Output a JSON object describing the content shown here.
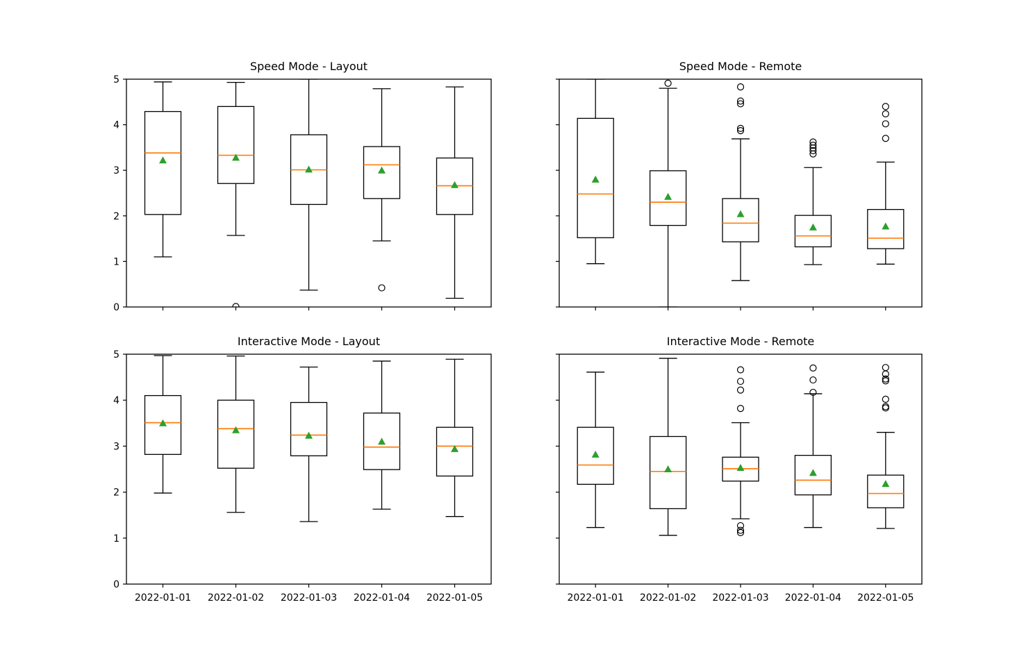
{
  "figure": {
    "background": "#ffffff",
    "colors": {
      "box_edge": "#000000",
      "median": "#ff7f0e",
      "mean_marker": "#2ca02c",
      "outlier_edge": "#000000",
      "text": "#000000"
    }
  },
  "chart_data": [
    {
      "type": "box",
      "title": "Speed Mode - Layout",
      "position": "top-left",
      "categories": [
        "2022-01-01",
        "2022-01-02",
        "2022-01-03",
        "2022-01-04",
        "2022-01-05"
      ],
      "ylim": [
        0,
        5
      ],
      "yticks": [
        0,
        1,
        2,
        3,
        4,
        5
      ],
      "show_y_tick_labels": true,
      "show_x_tick_labels": false,
      "grid": false,
      "legend": "none",
      "boxes": [
        {
          "category": "2022-01-01",
          "whislo": 1.1,
          "q1": 2.03,
          "med": 3.38,
          "q3": 4.29,
          "whishi": 4.94,
          "mean": 3.22,
          "fliers": []
        },
        {
          "category": "2022-01-02",
          "whislo": 1.57,
          "q1": 2.71,
          "med": 3.33,
          "q3": 4.4,
          "whishi": 4.93,
          "mean": 3.28,
          "fliers": [
            0.01
          ]
        },
        {
          "category": "2022-01-03",
          "whislo": 0.37,
          "q1": 2.25,
          "med": 3.01,
          "q3": 3.78,
          "whishi": 5.0,
          "mean": 3.02,
          "fliers": []
        },
        {
          "category": "2022-01-04",
          "whislo": 1.45,
          "q1": 2.38,
          "med": 3.12,
          "q3": 3.52,
          "whishi": 4.79,
          "mean": 3.0,
          "fliers": [
            0.42
          ]
        },
        {
          "category": "2022-01-05",
          "whislo": 0.19,
          "q1": 2.03,
          "med": 2.66,
          "q3": 3.27,
          "whishi": 4.83,
          "mean": 2.68,
          "fliers": []
        }
      ]
    },
    {
      "type": "box",
      "title": "Speed Mode - Remote",
      "position": "top-right",
      "categories": [
        "2022-01-01",
        "2022-01-02",
        "2022-01-03",
        "2022-01-04",
        "2022-01-05"
      ],
      "ylim": [
        0,
        5
      ],
      "yticks": [
        0,
        1,
        2,
        3,
        4,
        5
      ],
      "show_y_tick_labels": false,
      "show_x_tick_labels": false,
      "grid": false,
      "legend": "none",
      "boxes": [
        {
          "category": "2022-01-01",
          "whislo": 0.95,
          "q1": 1.52,
          "med": 2.48,
          "q3": 4.14,
          "whishi": 5.0,
          "mean": 2.8,
          "fliers": []
        },
        {
          "category": "2022-01-02",
          "whislo": 0.0,
          "q1": 1.79,
          "med": 2.3,
          "q3": 2.99,
          "whishi": 4.8,
          "mean": 2.42,
          "fliers": [
            4.91
          ]
        },
        {
          "category": "2022-01-03",
          "whislo": 0.58,
          "q1": 1.43,
          "med": 1.84,
          "q3": 2.38,
          "whishi": 3.69,
          "mean": 2.04,
          "fliers": [
            4.83,
            4.52,
            4.46,
            3.92,
            3.87
          ]
        },
        {
          "category": "2022-01-04",
          "whislo": 0.93,
          "q1": 1.32,
          "med": 1.56,
          "q3": 2.01,
          "whishi": 3.06,
          "mean": 1.75,
          "fliers": [
            3.62,
            3.55,
            3.49,
            3.43,
            3.36
          ]
        },
        {
          "category": "2022-01-05",
          "whislo": 0.94,
          "q1": 1.28,
          "med": 1.51,
          "q3": 2.14,
          "whishi": 3.18,
          "mean": 1.77,
          "fliers": [
            4.4,
            4.24,
            4.02,
            3.7
          ]
        }
      ]
    },
    {
      "type": "box",
      "title": "Interactive Mode - Layout",
      "position": "bottom-left",
      "categories": [
        "2022-01-01",
        "2022-01-02",
        "2022-01-03",
        "2022-01-04",
        "2022-01-05"
      ],
      "ylim": [
        0,
        5
      ],
      "yticks": [
        0,
        1,
        2,
        3,
        4,
        5
      ],
      "show_y_tick_labels": true,
      "show_x_tick_labels": true,
      "grid": false,
      "legend": "none",
      "boxes": [
        {
          "category": "2022-01-01",
          "whislo": 1.98,
          "q1": 2.82,
          "med": 3.51,
          "q3": 4.1,
          "whishi": 4.97,
          "mean": 3.5,
          "fliers": []
        },
        {
          "category": "2022-01-02",
          "whislo": 1.56,
          "q1": 2.52,
          "med": 3.38,
          "q3": 4.0,
          "whishi": 4.96,
          "mean": 3.35,
          "fliers": []
        },
        {
          "category": "2022-01-03",
          "whislo": 1.36,
          "q1": 2.79,
          "med": 3.24,
          "q3": 3.95,
          "whishi": 4.72,
          "mean": 3.23,
          "fliers": []
        },
        {
          "category": "2022-01-04",
          "whislo": 1.63,
          "q1": 2.49,
          "med": 2.98,
          "q3": 3.72,
          "whishi": 4.85,
          "mean": 3.1,
          "fliers": []
        },
        {
          "category": "2022-01-05",
          "whislo": 1.47,
          "q1": 2.35,
          "med": 3.0,
          "q3": 3.41,
          "whishi": 4.89,
          "mean": 2.94,
          "fliers": []
        }
      ]
    },
    {
      "type": "box",
      "title": "Interactive Mode - Remote",
      "position": "bottom-right",
      "categories": [
        "2022-01-01",
        "2022-01-02",
        "2022-01-03",
        "2022-01-04",
        "2022-01-05"
      ],
      "ylim": [
        0,
        5
      ],
      "yticks": [
        0,
        1,
        2,
        3,
        4,
        5
      ],
      "show_y_tick_labels": false,
      "show_x_tick_labels": true,
      "grid": false,
      "legend": "none",
      "boxes": [
        {
          "category": "2022-01-01",
          "whislo": 1.23,
          "q1": 2.17,
          "med": 2.59,
          "q3": 3.41,
          "whishi": 4.61,
          "mean": 2.82,
          "fliers": []
        },
        {
          "category": "2022-01-02",
          "whislo": 1.06,
          "q1": 1.64,
          "med": 2.45,
          "q3": 3.21,
          "whishi": 4.91,
          "mean": 2.5,
          "fliers": []
        },
        {
          "category": "2022-01-03",
          "whislo": 1.42,
          "q1": 2.24,
          "med": 2.51,
          "q3": 2.76,
          "whishi": 3.51,
          "mean": 2.53,
          "fliers": [
            4.66,
            4.41,
            4.22,
            3.82,
            1.27,
            1.17,
            1.12
          ]
        },
        {
          "category": "2022-01-04",
          "whislo": 1.23,
          "q1": 1.94,
          "med": 2.26,
          "q3": 2.8,
          "whishi": 4.14,
          "mean": 2.42,
          "fliers": [
            4.7,
            4.44,
            4.17
          ]
        },
        {
          "category": "2022-01-05",
          "whislo": 1.21,
          "q1": 1.66,
          "med": 1.97,
          "q3": 2.37,
          "whishi": 3.3,
          "mean": 2.18,
          "fliers": [
            4.71,
            4.57,
            4.46,
            4.42,
            4.02,
            3.86,
            3.83
          ]
        }
      ]
    }
  ]
}
